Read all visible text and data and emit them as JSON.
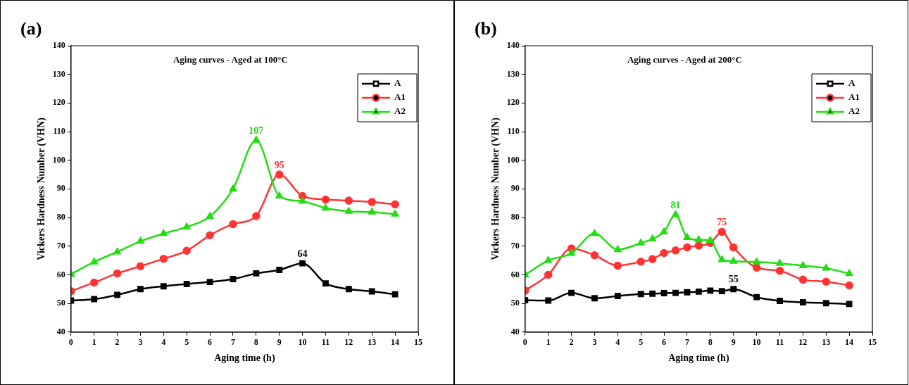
{
  "chart_data": [
    {
      "type": "line",
      "title": "Aging curves - Aged at 100°C",
      "xlabel": "Aging time (h)",
      "ylabel": "Vickers Hardness Number (VHN)",
      "x": [
        0,
        1,
        2,
        3,
        4,
        5,
        6,
        7,
        8,
        9,
        10,
        11,
        12,
        13,
        14
      ],
      "series": [
        {
          "name": "A",
          "color": "#000000",
          "marker": "square",
          "values": [
            51,
            51.5,
            53,
            55,
            56,
            56.8,
            57.5,
            58.5,
            60.5,
            61.7,
            64,
            57,
            55,
            54.2,
            53.2
          ]
        },
        {
          "name": "A1",
          "color": "#ff3333",
          "marker": "circle",
          "values": [
            54.3,
            57.3,
            60.5,
            63,
            65.6,
            68.4,
            73.8,
            77.7,
            80.5,
            95,
            87.5,
            86.3,
            85.9,
            85.4,
            84.6
          ]
        },
        {
          "name": "A2",
          "color": "#22dd11",
          "marker": "triangle",
          "values": [
            60.2,
            64.5,
            68,
            71.7,
            74.4,
            76.7,
            80.4,
            90,
            107,
            87.5,
            85.7,
            83.3,
            82.2,
            81.9,
            81.2
          ]
        }
      ],
      "xlim": [
        0,
        15
      ],
      "xticks": [
        0,
        1,
        2,
        3,
        4,
        5,
        6,
        7,
        8,
        9,
        10,
        11,
        12,
        13,
        14,
        15
      ],
      "ylim": [
        40,
        140
      ],
      "yticks": [
        40,
        50,
        60,
        70,
        80,
        90,
        100,
        110,
        120,
        130,
        140
      ],
      "grid": false,
      "legend": "top right",
      "annotations": [
        "(a)",
        {
          "text": "107",
          "x": 8,
          "y": 107
        },
        {
          "text": "95",
          "x": 9,
          "y": 95
        },
        {
          "text": "64",
          "x": 10,
          "y": 64
        }
      ]
    },
    {
      "type": "line",
      "title": "Aging curves - Aged at 200°C",
      "xlabel": "Aging time (h)",
      "ylabel": "Vickers Hardness Number (VHN)",
      "x": [
        0,
        1,
        2,
        3,
        4,
        5,
        5.5,
        6,
        6.5,
        7,
        7.5,
        8,
        8.5,
        9,
        10,
        11,
        12,
        13,
        14
      ],
      "series": [
        {
          "name": "A",
          "color": "#000000",
          "marker": "square",
          "values": [
            51.1,
            51,
            53.7,
            51.8,
            52.6,
            53.3,
            53.4,
            53.6,
            53.7,
            53.9,
            54.1,
            54.5,
            54.3,
            55,
            52.2,
            50.9,
            50.4,
            50.1,
            49.8
          ]
        },
        {
          "name": "A1",
          "color": "#ff3333",
          "marker": "circle",
          "values": [
            54.5,
            60,
            69.2,
            66.8,
            63.2,
            64.6,
            65.5,
            67.6,
            68.5,
            69.6,
            70.2,
            71.1,
            75,
            69.6,
            62.5,
            61.4,
            58.3,
            57.6,
            56.3
          ]
        },
        {
          "name": "A2",
          "color": "#22dd11",
          "marker": "triangle",
          "values": [
            60,
            65,
            67.5,
            74.4,
            68.8,
            71.1,
            72.5,
            75,
            81,
            73,
            72.2,
            72,
            65.3,
            64.7,
            64.5,
            64,
            63.2,
            62.3,
            60.4
          ]
        }
      ],
      "xlim": [
        0,
        15
      ],
      "xticks": [
        0,
        1,
        2,
        3,
        4,
        5,
        6,
        7,
        8,
        9,
        10,
        11,
        12,
        13,
        14,
        15
      ],
      "ylim": [
        40,
        140
      ],
      "yticks": [
        40,
        50,
        60,
        70,
        80,
        90,
        100,
        110,
        120,
        130,
        140
      ],
      "grid": false,
      "legend": "top right",
      "annotations": [
        "(b)",
        {
          "text": "81",
          "x": 6.5,
          "y": 81
        },
        {
          "text": "75",
          "x": 8.5,
          "y": 75
        },
        {
          "text": "55",
          "x": 9,
          "y": 55
        }
      ]
    }
  ]
}
